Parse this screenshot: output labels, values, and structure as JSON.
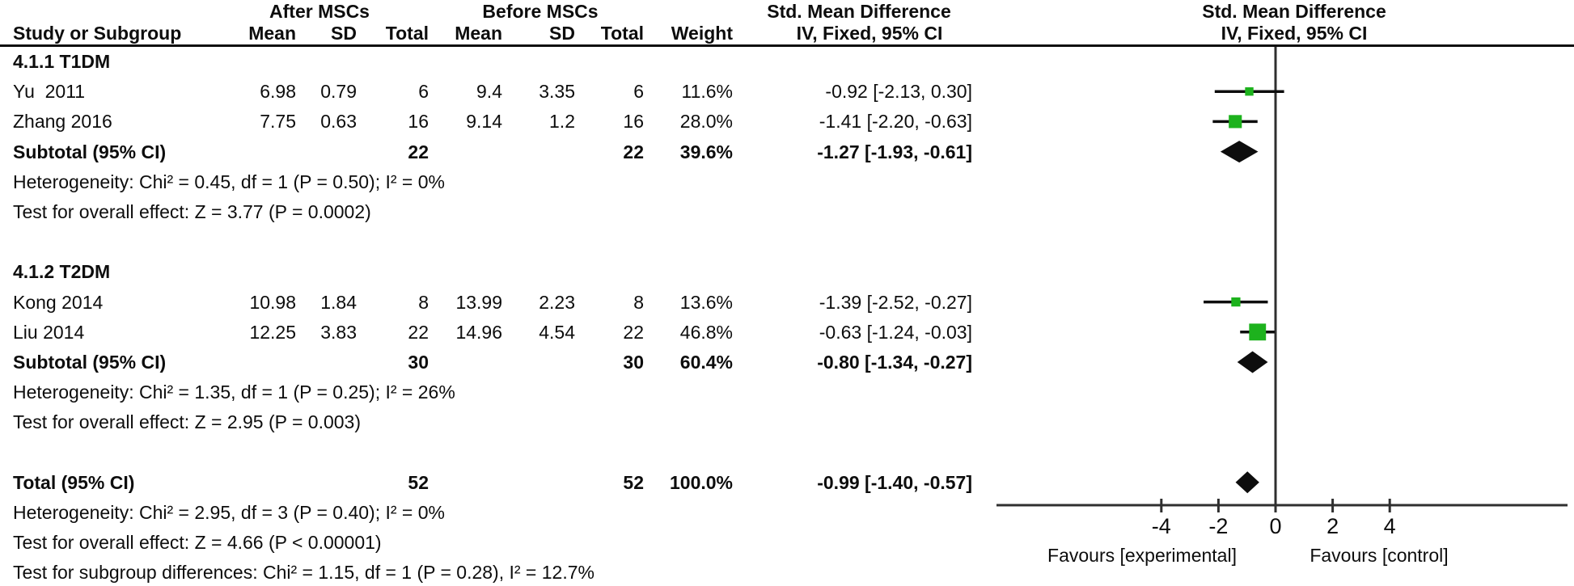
{
  "headers": {
    "after_group": "After MSCs",
    "before_group": "Before MSCs",
    "smd_text_col": "Std. Mean Difference",
    "smd_plot_col": "Std. Mean Difference",
    "study": "Study or Subgroup",
    "mean_after": "Mean",
    "sd_after": "SD",
    "total_after": "Total",
    "mean_before": "Mean",
    "sd_before": "SD",
    "total_before": "Total",
    "weight": "Weight",
    "ci_text_col": "IV, Fixed, 95% CI",
    "ci_plot_col": "IV, Fixed, 95% CI"
  },
  "table": {
    "rows": [
      {
        "type": "group",
        "label": "4.1.1 T1DM"
      },
      {
        "type": "study",
        "label": "Yu  2011",
        "mean1": "6.98",
        "sd1": "0.79",
        "total1": "6",
        "mean2": "9.4",
        "sd2": "3.35",
        "total2": "6",
        "weight": "11.6%",
        "ci_text": "-0.92 [-2.13, 0.30]",
        "smd": -0.92,
        "ci_low": -2.13,
        "ci_high": 0.3,
        "weight_val": 11.6
      },
      {
        "type": "study",
        "label": "Zhang 2016",
        "mean1": "7.75",
        "sd1": "0.63",
        "total1": "16",
        "mean2": "9.14",
        "sd2": "1.2",
        "total2": "16",
        "weight": "28.0%",
        "ci_text": "-1.41 [-2.20, -0.63]",
        "smd": -1.41,
        "ci_low": -2.2,
        "ci_high": -0.63,
        "weight_val": 28.0
      },
      {
        "type": "subtotal",
        "label": "Subtotal (95% CI)",
        "total1": "22",
        "total2": "22",
        "weight": "39.6%",
        "ci_text": "-1.27 [-1.93, -0.61]",
        "smd": -1.27,
        "ci_low": -1.93,
        "ci_high": -0.61
      },
      {
        "type": "text",
        "label": "Heterogeneity: Chi² = 0.45, df = 1 (P = 0.50); I² = 0%"
      },
      {
        "type": "text",
        "label": "Test for overall effect: Z = 3.77 (P = 0.0002)"
      },
      {
        "type": "blank"
      },
      {
        "type": "group",
        "label": "4.1.2 T2DM"
      },
      {
        "type": "study",
        "label": "Kong 2014",
        "mean1": "10.98",
        "sd1": "1.84",
        "total1": "8",
        "mean2": "13.99",
        "sd2": "2.23",
        "total2": "8",
        "weight": "13.6%",
        "ci_text": "-1.39 [-2.52, -0.27]",
        "smd": -1.39,
        "ci_low": -2.52,
        "ci_high": -0.27,
        "weight_val": 13.6
      },
      {
        "type": "study",
        "label": "Liu 2014",
        "mean1": "12.25",
        "sd1": "3.83",
        "total1": "22",
        "mean2": "14.96",
        "sd2": "4.54",
        "total2": "22",
        "weight": "46.8%",
        "ci_text": "-0.63 [-1.24, -0.03]",
        "smd": -0.63,
        "ci_low": -1.24,
        "ci_high": -0.03,
        "weight_val": 46.8
      },
      {
        "type": "subtotal",
        "label": "Subtotal (95% CI)",
        "total1": "30",
        "total2": "30",
        "weight": "60.4%",
        "ci_text": "-0.80 [-1.34, -0.27]",
        "smd": -0.8,
        "ci_low": -1.34,
        "ci_high": -0.27
      },
      {
        "type": "text",
        "label": "Heterogeneity: Chi² = 1.35, df = 1 (P = 0.25); I² = 26%"
      },
      {
        "type": "text",
        "label": "Test for overall effect: Z = 2.95 (P = 0.003)"
      },
      {
        "type": "blank"
      },
      {
        "type": "total",
        "label": "Total (95% CI)",
        "total1": "52",
        "total2": "52",
        "weight": "100.0%",
        "ci_text": "-0.99 [-1.40, -0.57]",
        "smd": -0.99,
        "ci_low": -1.4,
        "ci_high": -0.57
      },
      {
        "type": "text",
        "label": "Heterogeneity: Chi² = 2.95, df = 3 (P = 0.40); I² = 0%"
      },
      {
        "type": "text",
        "label": "Test for overall effect: Z = 4.66 (P < 0.00001)"
      },
      {
        "type": "text",
        "label": "Test for subgroup differences: Chi² = 1.15, df = 1 (P = 0.28), I² = 12.7%"
      }
    ]
  },
  "axis": {
    "ticks": [
      -4,
      -2,
      0,
      2,
      4
    ],
    "favours_left": "Favours [experimental]",
    "favours_right": "Favours [control]"
  },
  "colors": {
    "marker_green": "#1db21d",
    "diamond_black": "#0d0d0d",
    "axis_line": "#2f2f2f",
    "text": "#0d0d0d"
  },
  "chart_data": {
    "type": "scatter",
    "chart_kind": "forest-plot-meta-analysis",
    "title": "Std. Mean Difference, IV, Fixed, 95% CI",
    "x_ticks": [
      -4,
      -2,
      0,
      2,
      4
    ],
    "x_axis_labels": [
      "Favours [experimental]",
      "Favours [control]"
    ],
    "legend_position": "none",
    "grid": false,
    "groups": [
      {
        "name": "4.1.1 T1DM",
        "studies": [
          {
            "study": "Yu  2011",
            "after_mean": 6.98,
            "after_sd": 0.79,
            "after_total": 6,
            "before_mean": 9.4,
            "before_sd": 3.35,
            "before_total": 6,
            "weight_pct": 11.6,
            "smd": -0.92,
            "ci": [
              -2.13,
              0.3
            ]
          },
          {
            "study": "Zhang 2016",
            "after_mean": 7.75,
            "after_sd": 0.63,
            "after_total": 16,
            "before_mean": 9.14,
            "before_sd": 1.2,
            "before_total": 16,
            "weight_pct": 28.0,
            "smd": -1.41,
            "ci": [
              -2.2,
              -0.63
            ]
          }
        ],
        "subtotal": {
          "after_total": 22,
          "before_total": 22,
          "weight_pct": 39.6,
          "smd": -1.27,
          "ci": [
            -1.93,
            -0.61
          ]
        },
        "heterogeneity": "Chi² = 0.45, df = 1 (P = 0.50); I² = 0%",
        "overall_effect": "Z = 3.77 (P = 0.0002)"
      },
      {
        "name": "4.1.2 T2DM",
        "studies": [
          {
            "study": "Kong 2014",
            "after_mean": 10.98,
            "after_sd": 1.84,
            "after_total": 8,
            "before_mean": 13.99,
            "before_sd": 2.23,
            "before_total": 8,
            "weight_pct": 13.6,
            "smd": -1.39,
            "ci": [
              -2.52,
              -0.27
            ]
          },
          {
            "study": "Liu 2014",
            "after_mean": 12.25,
            "after_sd": 3.83,
            "after_total": 22,
            "before_mean": 14.96,
            "before_sd": 4.54,
            "before_total": 22,
            "weight_pct": 46.8,
            "smd": -0.63,
            "ci": [
              -1.24,
              -0.03
            ]
          }
        ],
        "subtotal": {
          "after_total": 30,
          "before_total": 30,
          "weight_pct": 60.4,
          "smd": -0.8,
          "ci": [
            -1.34,
            -0.27
          ]
        },
        "heterogeneity": "Chi² = 1.35, df = 1 (P = 0.25); I² = 26%",
        "overall_effect": "Z = 2.95 (P = 0.003)"
      }
    ],
    "total": {
      "after_total": 52,
      "before_total": 52,
      "weight_pct": 100.0,
      "smd": -0.99,
      "ci": [
        -1.4,
        -0.57
      ]
    },
    "heterogeneity": "Chi² = 2.95, df = 3 (P = 0.40); I² = 0%",
    "overall_effect": "Z = 4.66 (P < 0.00001)",
    "subgroup_differences": "Chi² = 1.15, df = 1 (P = 0.28), I² = 12.7%"
  }
}
